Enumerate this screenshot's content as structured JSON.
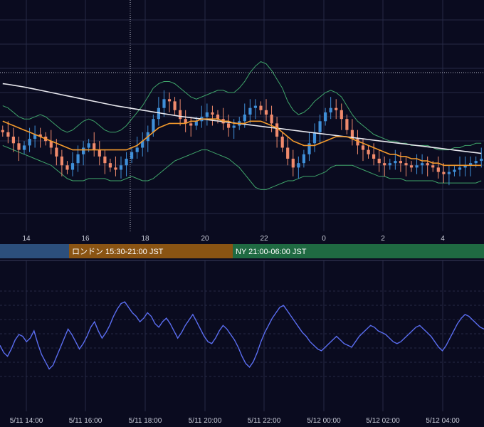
{
  "colors": {
    "background": "#0a0b1f",
    "grid": "#262a45",
    "candle_up": "#3f8fd8",
    "candle_down": "#f08a6c",
    "ma_short": "#f39a2c",
    "ma_long": "#e8e8ee",
    "bollinger": "#3fa46a",
    "oscillator": "#5a6df0",
    "session_tokyo": "#2c4f7c",
    "session_london": "#8a5413",
    "session_ny": "#1f6a42"
  },
  "sessions": [
    {
      "label": "",
      "color": "#2c4f7c"
    },
    {
      "label": "ロンドン 15:30-21:00 JST",
      "color": "#8a5413"
    },
    {
      "label": "NY 21:00-06:00 JST",
      "color": "#1f6a42"
    }
  ],
  "chart_data": [
    {
      "type": "candlestick",
      "x_ticks": [
        "14",
        "16",
        "18",
        "20",
        "22",
        "0",
        "2",
        "4"
      ],
      "series": [
        {
          "name": "",
          "kind": "candles",
          "close": [
            52,
            50,
            47,
            44,
            46,
            49,
            51,
            50,
            48,
            45,
            41,
            37,
            35,
            38,
            42,
            45,
            47,
            44,
            41,
            38,
            36,
            35,
            37,
            40,
            43,
            45,
            48,
            52,
            58,
            63,
            67,
            66,
            62,
            58,
            56,
            55,
            57,
            59,
            61,
            60,
            58,
            56,
            54,
            55,
            57,
            60,
            63,
            64,
            62,
            60,
            56,
            50,
            45,
            40,
            36,
            38,
            42,
            47,
            52,
            57,
            61,
            63,
            62,
            58,
            53,
            49,
            46,
            44,
            42,
            40,
            38,
            37,
            38,
            39,
            38,
            37,
            36,
            37,
            38,
            37,
            36,
            34,
            33,
            34,
            35,
            36,
            37,
            38,
            39,
            40
          ]
        },
        {
          "name": "",
          "kind": "ma_short",
          "values": [
            57,
            56,
            55,
            54,
            53,
            52,
            51,
            50,
            49,
            48,
            47,
            46,
            45,
            44,
            44,
            44,
            44,
            44,
            44,
            44,
            44,
            44,
            44,
            44,
            45,
            46,
            48,
            50,
            52,
            54,
            55,
            56,
            56,
            56,
            56,
            57,
            57,
            58,
            58,
            58,
            58,
            57,
            57,
            56,
            56,
            56,
            57,
            57,
            57,
            56,
            55,
            54,
            52,
            50,
            48,
            47,
            46,
            46,
            46,
            47,
            48,
            49,
            50,
            50,
            50,
            49,
            48,
            47,
            46,
            45,
            44,
            43,
            42,
            42,
            41,
            41,
            40,
            40,
            39,
            39,
            38,
            38,
            37,
            37,
            37,
            37,
            37,
            37,
            37,
            37
          ]
        },
        {
          "name": "",
          "kind": "ma_long",
          "values": [
            74,
            73.7,
            73.3,
            72.9,
            72.5,
            72,
            71.5,
            71,
            70.5,
            70,
            69.5,
            69,
            68.5,
            68,
            67.5,
            67,
            66.5,
            66,
            65.5,
            65,
            64.5,
            64,
            63.6,
            63.2,
            62.8,
            62.4,
            62,
            61.6,
            61.2,
            60.8,
            60.4,
            60,
            59.6,
            59.2,
            58.9,
            58.6,
            58.3,
            58,
            57.7,
            57.4,
            57.1,
            56.8,
            56.5,
            56.2,
            55.9,
            55.6,
            55.3,
            55,
            54.7,
            54.4,
            54.1,
            53.8,
            53.5,
            53.2,
            52.9,
            52.6,
            52.3,
            52,
            51.7,
            51.4,
            51.1,
            50.8,
            50.5,
            50.2,
            49.9,
            49.6,
            49.3,
            49,
            48.7,
            48.4,
            48.1,
            47.8,
            47.5,
            47.2,
            46.9,
            46.6,
            46.3,
            46,
            45.7,
            45.4,
            45.1,
            44.8,
            44.5,
            44.2,
            43.9,
            43.6,
            43.3,
            43,
            42.7,
            42.4
          ]
        },
        {
          "name": "",
          "kind": "bollinger_upper",
          "values": [
            64,
            63,
            61,
            59,
            58,
            58,
            59,
            60,
            59,
            57,
            55,
            53,
            52,
            53,
            55,
            57,
            58,
            57,
            55,
            53,
            52,
            52,
            53,
            55,
            58,
            61,
            64,
            68,
            72,
            74,
            75,
            75,
            74,
            72,
            70,
            68,
            67,
            68,
            69,
            70,
            71,
            71,
            70,
            70,
            72,
            75,
            79,
            82,
            84,
            83,
            80,
            76,
            72,
            66,
            62,
            60,
            61,
            63,
            66,
            68,
            70,
            71,
            70,
            68,
            64,
            60,
            57,
            55,
            53,
            51,
            50,
            49,
            48,
            48,
            47,
            47,
            46,
            46,
            46,
            46,
            45,
            44,
            44,
            44,
            45,
            45,
            46,
            46,
            47,
            47
          ]
        },
        {
          "name": "",
          "kind": "bollinger_lower",
          "values": [
            46,
            45,
            44,
            43,
            42,
            41,
            40,
            39,
            38,
            37,
            35,
            33,
            31,
            30,
            30,
            30,
            31,
            31,
            31,
            31,
            30,
            30,
            30,
            31,
            32,
            31,
            30,
            30,
            31,
            33,
            35,
            37,
            39,
            40,
            41,
            42,
            43,
            44,
            44,
            43,
            42,
            41,
            40,
            38,
            36,
            33,
            30,
            27,
            26,
            26,
            27,
            28,
            29,
            30,
            30,
            31,
            32,
            32,
            32,
            33,
            34,
            36,
            37,
            37,
            37,
            37,
            36,
            35,
            34,
            33,
            32,
            32,
            31,
            31,
            31,
            30,
            30,
            30,
            30,
            30,
            30,
            29,
            29,
            29,
            29,
            29,
            29,
            29,
            29,
            30
          ]
        }
      ]
    },
    {
      "type": "line",
      "x_ticks": [
        "5/11 14:00",
        "5/11 16:00",
        "5/11 18:00",
        "5/11 20:00",
        "5/11 22:00",
        "5/12 00:00",
        "5/12 02:00",
        "5/12 04:00"
      ],
      "series": [
        {
          "name": "",
          "values": [
            42,
            38,
            36,
            40,
            45,
            48,
            47,
            44,
            46,
            50,
            43,
            37,
            33,
            29,
            31,
            36,
            41,
            46,
            51,
            48,
            44,
            40,
            43,
            47,
            52,
            55,
            50,
            46,
            49,
            53,
            58,
            62,
            65,
            66,
            63,
            60,
            58,
            55,
            57,
            60,
            58,
            54,
            52,
            55,
            57,
            54,
            50,
            46,
            49,
            53,
            56,
            59,
            55,
            51,
            47,
            44,
            43,
            46,
            50,
            53,
            51,
            48,
            45,
            41,
            36,
            32,
            30,
            33,
            38,
            44,
            49,
            53,
            57,
            60,
            63,
            64,
            61,
            58,
            55,
            52,
            49,
            47,
            44,
            42,
            40,
            39,
            41,
            43,
            45,
            47,
            45,
            43,
            42,
            41,
            44,
            47,
            49,
            51,
            53,
            52,
            50,
            49,
            48,
            46,
            44,
            43,
            44,
            46,
            48,
            50,
            52,
            53,
            51,
            49,
            47,
            44,
            41,
            39,
            42,
            46,
            50,
            54,
            57,
            59,
            58,
            56,
            54,
            52,
            51
          ]
        }
      ]
    }
  ]
}
